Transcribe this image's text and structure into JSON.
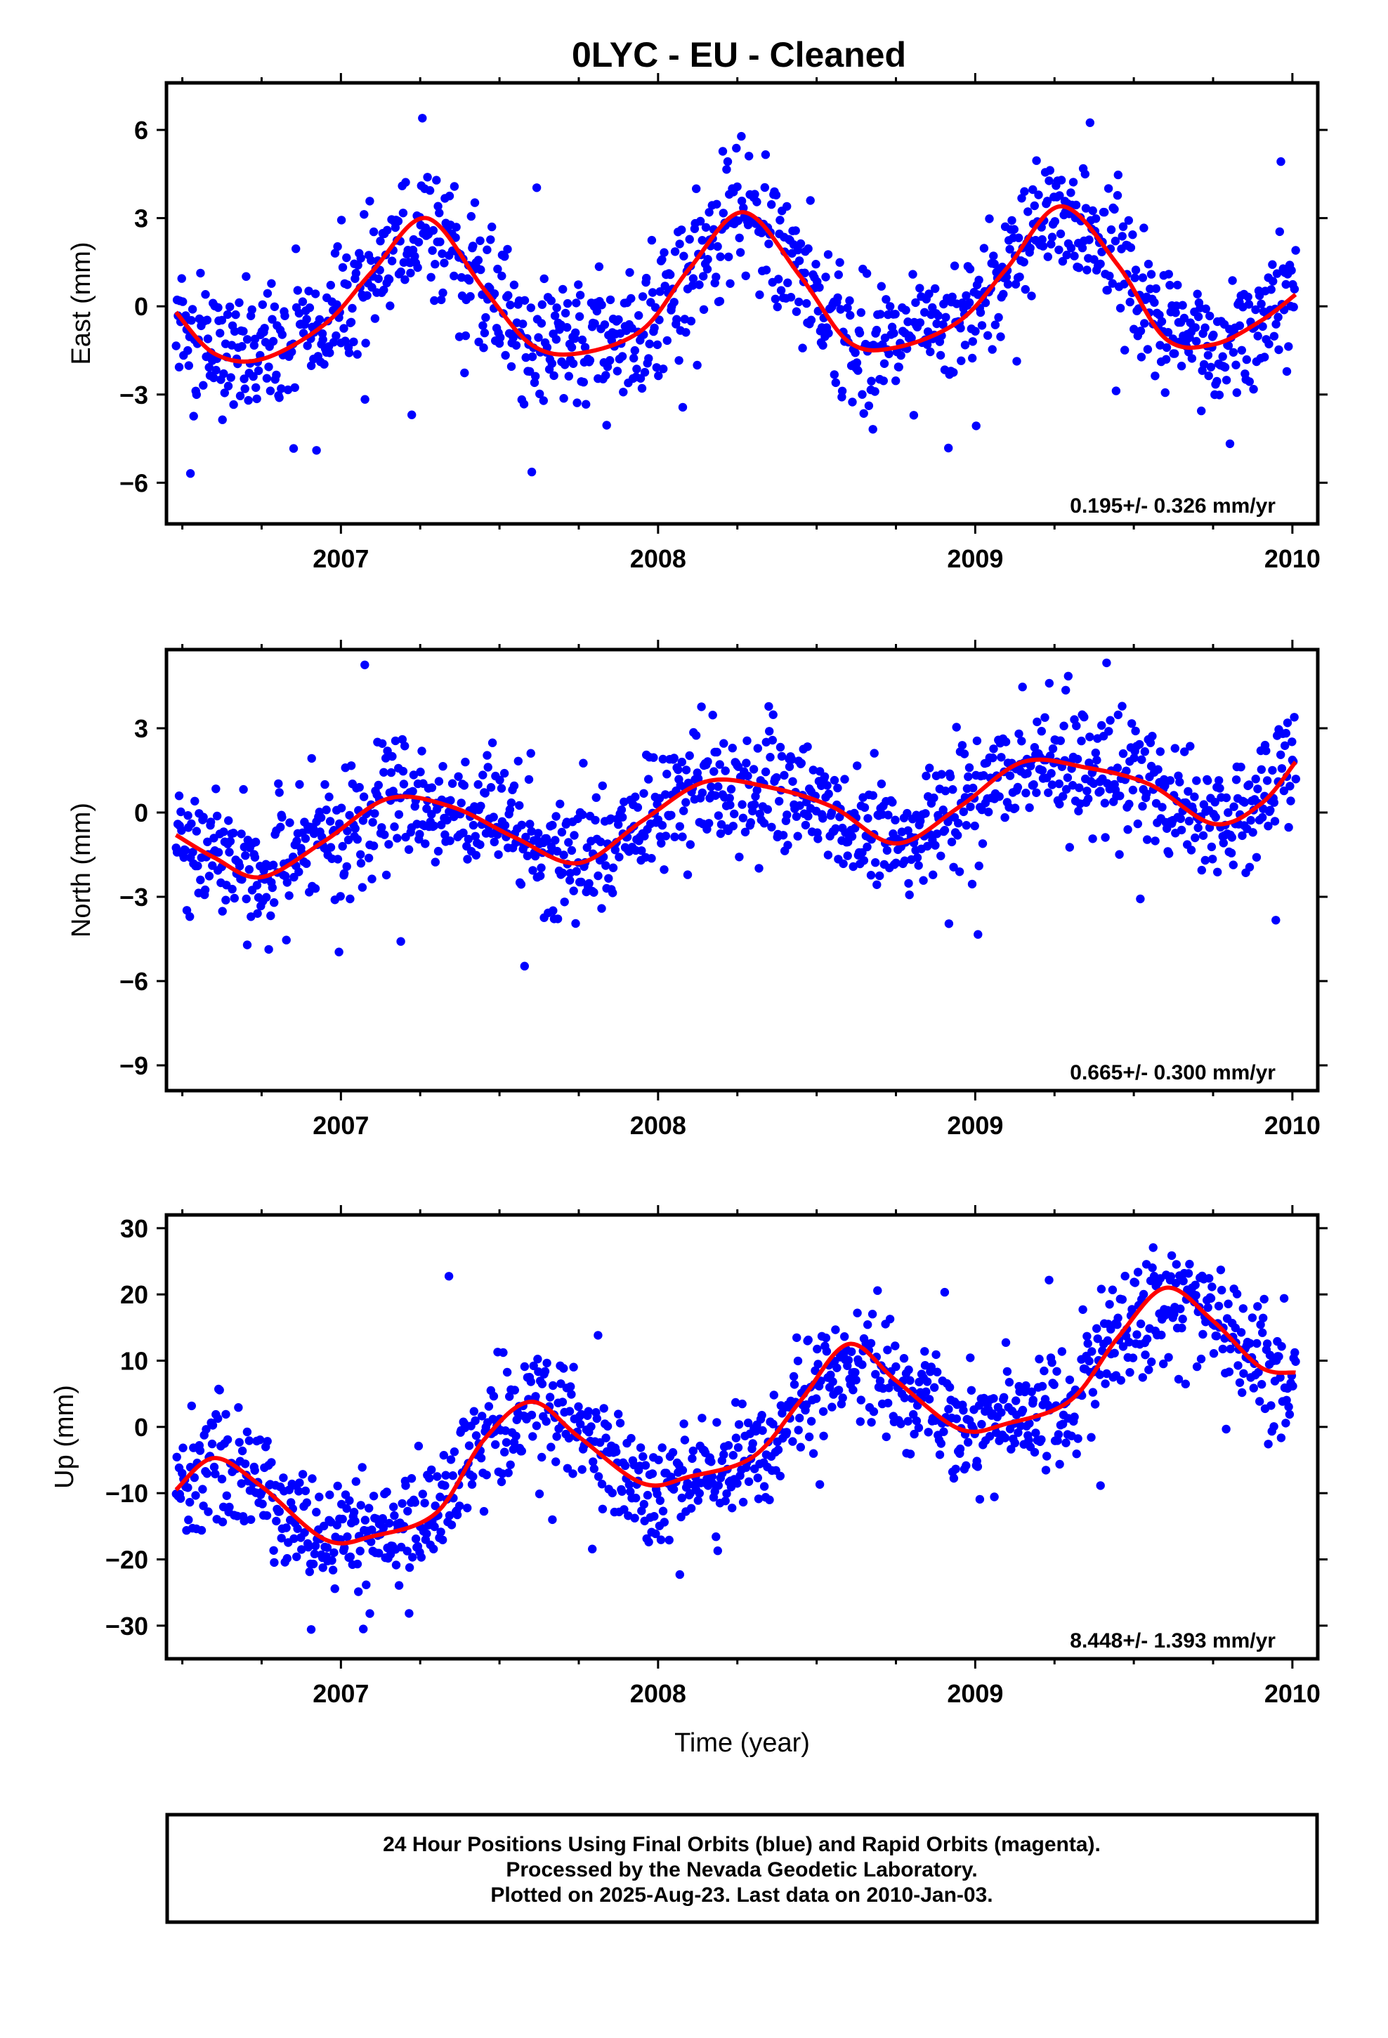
{
  "page": {
    "title": "0LYC  - EU - Cleaned",
    "footer_lines": [
      "24 Hour Positions Using Final Orbits (blue) and Rapid Orbits (magenta).",
      "Processed by the Nevada Geodetic Laboratory.",
      "Plotted on 2025-Aug-23. Last data on 2010-Jan-03."
    ]
  },
  "colors": {
    "points": "#0000ff",
    "fit": "#ff0000",
    "axes": "#000000"
  },
  "chart_data": [
    {
      "type": "scatter",
      "ylabel": "East (mm)",
      "xlabel": "",
      "xlim": [
        2006.45,
        2010.08
      ],
      "ylim": [
        -7.4,
        7.6
      ],
      "x_ticks": [
        2007,
        2008,
        2009,
        2010
      ],
      "y_ticks": [
        6,
        3,
        0,
        -3,
        -6
      ],
      "y_tick_labels": [
        "6",
        "3",
        "0",
        "−3",
        "−6"
      ],
      "rate_label": "0.195+/- 0.326 mm/yr",
      "series": [
        {
          "kind": "points",
          "values_note": "daily positions",
          "x_start": 2006.48,
          "x_end": 2010.01,
          "trend_per_yr": 0.195,
          "amplitude": 2.5,
          "phase_peak": 0.27,
          "scatter": 1.1
        },
        {
          "kind": "fit",
          "x": [
            2006.48,
            2006.6,
            2006.75,
            2006.95,
            2007.1,
            2007.27,
            2007.45,
            2007.6,
            2007.75,
            2007.95,
            2008.1,
            2008.27,
            2008.45,
            2008.6,
            2008.75,
            2008.95,
            2009.1,
            2009.27,
            2009.45,
            2009.6,
            2009.75,
            2009.9,
            2010.01
          ],
          "y": [
            -0.2,
            -1.6,
            -1.8,
            -0.6,
            1.2,
            3.0,
            0.6,
            -1.3,
            -1.6,
            -0.8,
            1.3,
            3.2,
            1.0,
            -1.2,
            -1.4,
            -0.5,
            1.3,
            3.4,
            1.4,
            -1.1,
            -1.3,
            -0.5,
            0.4
          ]
        }
      ]
    },
    {
      "type": "scatter",
      "ylabel": "North (mm)",
      "xlabel": "",
      "xlim": [
        2006.45,
        2010.08
      ],
      "ylim": [
        -9.9,
        5.8
      ],
      "x_ticks": [
        2007,
        2008,
        2009,
        2010
      ],
      "y_ticks": [
        3,
        0,
        -3,
        -6,
        -9
      ],
      "y_tick_labels": [
        "3",
        "0",
        "−3",
        "−6",
        "−9"
      ],
      "rate_label": "0.665+/- 0.300 mm/yr",
      "series": [
        {
          "kind": "points",
          "x_start": 2006.48,
          "x_end": 2010.01,
          "trend_per_yr": 0.665,
          "amplitude": 1.2,
          "phase_peak": 0.15,
          "scatter": 1.1
        },
        {
          "kind": "fit",
          "x": [
            2006.48,
            2006.6,
            2006.75,
            2006.95,
            2007.15,
            2007.35,
            2007.55,
            2007.75,
            2007.95,
            2008.15,
            2008.35,
            2008.55,
            2008.75,
            2008.95,
            2009.15,
            2009.35,
            2009.55,
            2009.75,
            2009.9,
            2010.01
          ],
          "y": [
            -0.8,
            -1.6,
            -2.3,
            -1.0,
            0.5,
            0.2,
            -0.9,
            -1.8,
            -0.3,
            1.1,
            0.9,
            0.2,
            -1.1,
            0.2,
            1.8,
            1.6,
            1.0,
            -0.4,
            0.3,
            1.8
          ]
        }
      ]
    },
    {
      "type": "scatter",
      "ylabel": "Up (mm)",
      "xlabel": "Time (year)",
      "xlim": [
        2006.45,
        2010.08
      ],
      "ylim": [
        -35,
        32
      ],
      "x_ticks": [
        2007,
        2008,
        2009,
        2010
      ],
      "y_ticks": [
        30,
        20,
        10,
        0,
        -10,
        -20,
        -30
      ],
      "y_tick_labels": [
        "30",
        "20",
        "10",
        "0",
        "−10",
        "−20",
        "−30"
      ],
      "rate_label": "8.448+/- 1.393 mm/yr",
      "series": [
        {
          "kind": "points",
          "x_start": 2006.48,
          "x_end": 2010.01,
          "trend_per_yr": 8.448,
          "amplitude": 7.0,
          "phase_peak": 0.6,
          "scatter": 4.5
        },
        {
          "kind": "fit",
          "x": [
            2006.48,
            2006.6,
            2006.75,
            2006.95,
            2007.1,
            2007.3,
            2007.45,
            2007.6,
            2007.75,
            2007.95,
            2008.1,
            2008.3,
            2008.45,
            2008.6,
            2008.75,
            2008.95,
            2009.1,
            2009.3,
            2009.45,
            2009.6,
            2009.75,
            2009.9,
            2010.01
          ],
          "y": [
            -9.5,
            -4.7,
            -9.0,
            -17.0,
            -16.5,
            -13.0,
            -2.0,
            3.8,
            -1.5,
            -8.5,
            -7.5,
            -4.5,
            4.0,
            12.5,
            7.0,
            -0.3,
            0.5,
            4.0,
            13.5,
            21.0,
            16.0,
            9.0,
            8.2
          ]
        }
      ]
    }
  ]
}
